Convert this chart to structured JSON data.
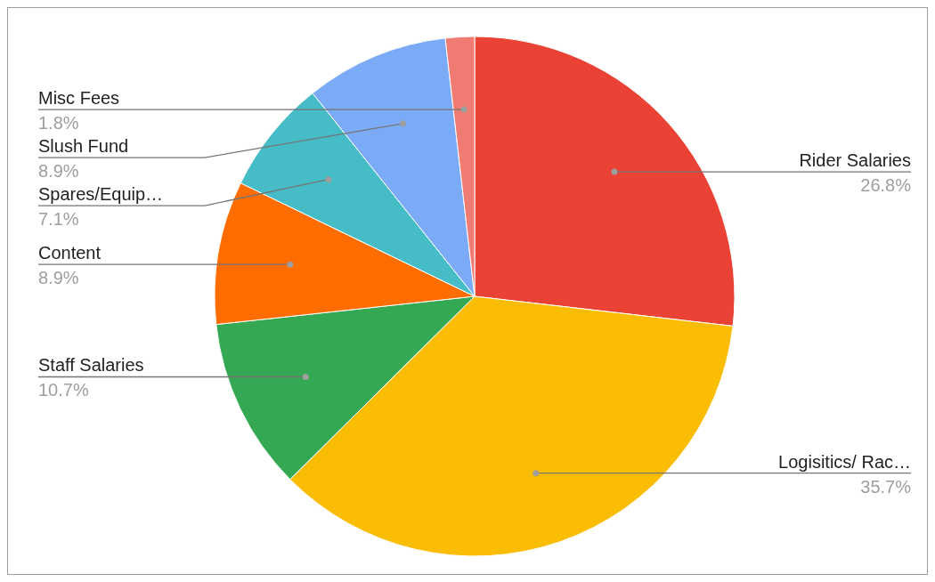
{
  "chart_data": {
    "type": "pie",
    "categories": [
      "Rider Salaries",
      "Logisitics/ Rac…",
      "Staff Salaries",
      "Content",
      "Spares/Equip…",
      "Slush Fund",
      "Misc Fees"
    ],
    "values": [
      26.8,
      35.7,
      10.7,
      8.9,
      7.1,
      8.9,
      1.8
    ],
    "colors": [
      "#ea4335",
      "#fbbc04",
      "#34a853",
      "#ff6d01",
      "#46bdc6",
      "#7baaf7",
      "#f07b72"
    ],
    "value_labels": [
      "26.8%",
      "35.7%",
      "10.7%",
      "8.9%",
      "7.1%",
      "8.9%",
      "1.8%"
    ],
    "legend": false
  }
}
